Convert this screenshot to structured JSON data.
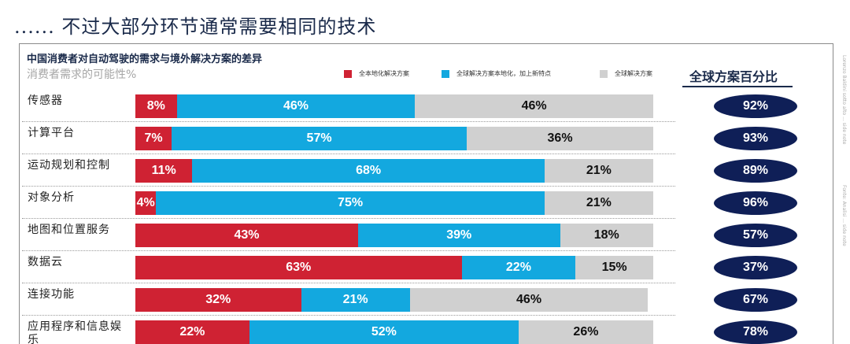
{
  "headline": "...... 不过大部分环节通常需要相同的技术",
  "side_notes": [
    "Lorenzo Baldini sotto alto ... side note",
    "Fonte: Analisi ... side note"
  ],
  "chart_data": {
    "type": "bar",
    "stacked": true,
    "orientation": "horizontal",
    "title": "中国消费者对自动驾驶的需求与境外解决方案的差异",
    "subtitle": "消费者需求的可能性%",
    "categories": [
      "传感器",
      "计算平台",
      "运动规划和控制",
      "对象分析",
      "地图和位置服务",
      "数据云",
      "连接功能",
      "应用程序和信息娱乐"
    ],
    "series": [
      {
        "name": "全本地化解决方案",
        "color": "#cf2233",
        "values": [
          8,
          7,
          11,
          4,
          43,
          63,
          32,
          22
        ]
      },
      {
        "name": "全球解决方案本地化，加上新特点",
        "color": "#13a8df",
        "values": [
          46,
          57,
          68,
          75,
          39,
          22,
          21,
          52
        ]
      },
      {
        "name": "全球解决方案",
        "color": "#d0d0d0",
        "values": [
          46,
          36,
          21,
          21,
          18,
          15,
          46,
          26
        ]
      }
    ],
    "value_suffix": "%",
    "global_share": {
      "header": "全球方案百分比",
      "values": [
        "92%",
        "93%",
        "89%",
        "96%",
        "57%",
        "37%",
        "67%",
        "78%"
      ]
    },
    "xlim": [
      0,
      100
    ],
    "legend_position": "top"
  }
}
